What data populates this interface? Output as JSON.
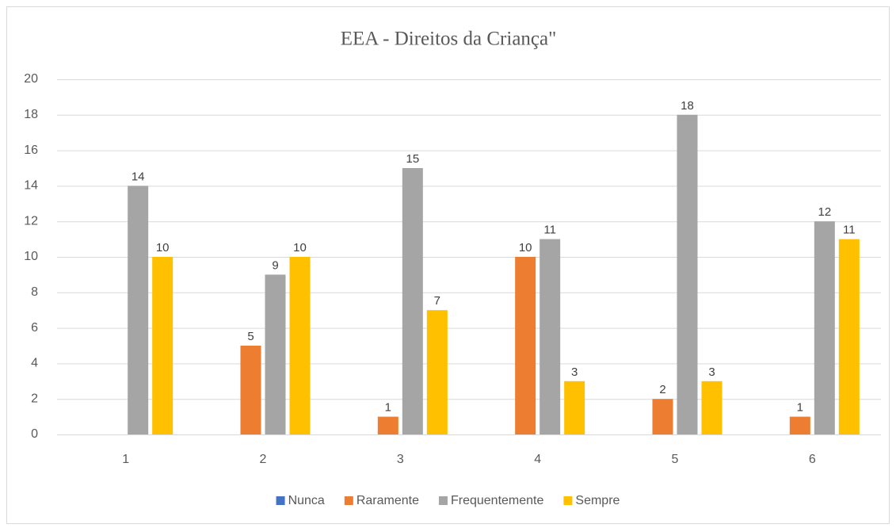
{
  "chart_data": {
    "type": "bar",
    "title": "EEA - Direitos da Criança\"",
    "categories": [
      "1",
      "2",
      "3",
      "4",
      "5",
      "6"
    ],
    "series": [
      {
        "name": "Nunca",
        "color": "#4472c4",
        "values": [
          null,
          null,
          null,
          null,
          null,
          null
        ]
      },
      {
        "name": "Raramente",
        "color": "#ed7d31",
        "values": [
          null,
          5,
          1,
          10,
          2,
          1
        ]
      },
      {
        "name": "Frequentemente",
        "color": "#a5a5a5",
        "values": [
          14,
          9,
          15,
          11,
          18,
          12
        ]
      },
      {
        "name": "Sempre",
        "color": "#ffc000",
        "values": [
          10,
          10,
          7,
          3,
          3,
          11
        ]
      }
    ],
    "ylim": [
      0,
      20
    ],
    "yticks": [
      0,
      2,
      4,
      6,
      8,
      10,
      12,
      14,
      16,
      18,
      20
    ],
    "grid": true,
    "data_labels": true,
    "legend": "bottom"
  }
}
